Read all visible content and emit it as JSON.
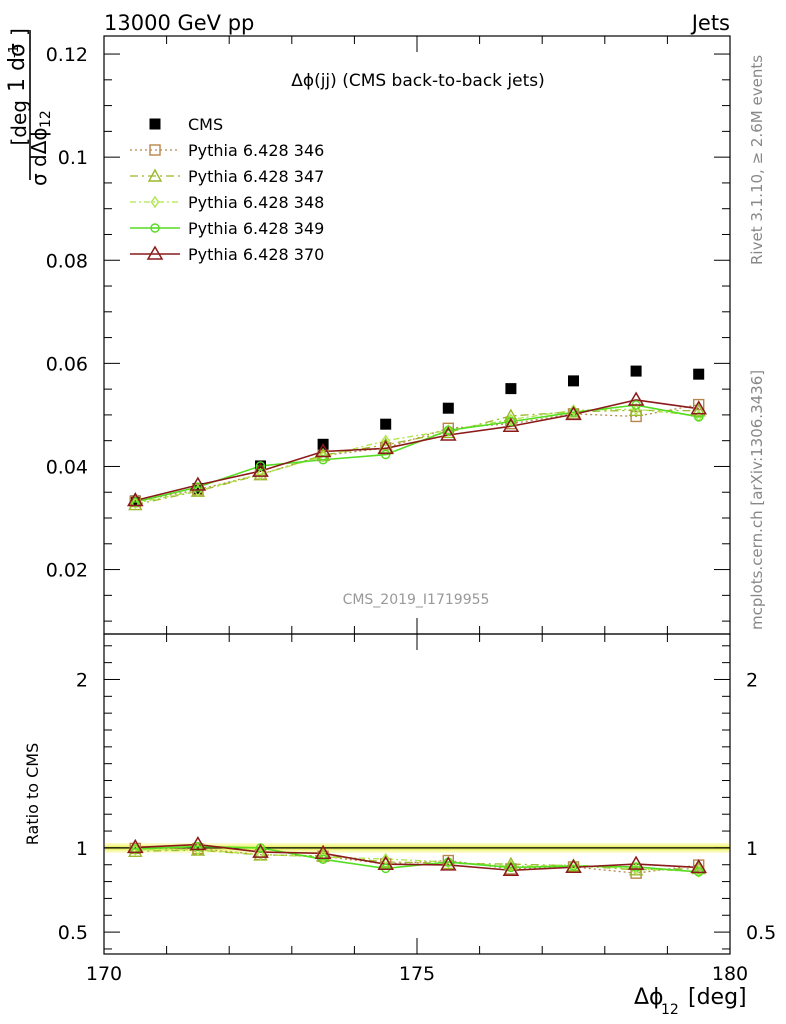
{
  "header": {
    "left": "13000 GeV pp",
    "right": "Jets"
  },
  "side_text": {
    "top": "Rivet 3.1.10, ≥ 2.6M events",
    "bottom": "mcplots.cern.ch [arXiv:1306.3436]"
  },
  "watermark": "CMS_2019_I1719955",
  "colors": {
    "data": "#000000",
    "p346": "#b8864a",
    "p347": "#9ab82a",
    "p348": "#aee64a",
    "p349": "#55dd22",
    "p370": "#8b1a1a",
    "band": "#f5f57a"
  },
  "chart_data": [
    {
      "type": "scatter",
      "title": "Δϕ(jj) (CMS back-to-back jets)",
      "ylabel": "1/σ dσ/dΔϕ₁₂ [deg⁻¹]",
      "ylim": [
        0.0075,
        0.1235
      ],
      "yticks": [
        "0.02",
        "0.04",
        "0.06",
        "0.08",
        "0.1",
        "0.12"
      ],
      "legend_position": "top-left",
      "x": [
        170.5,
        171.5,
        172.5,
        173.5,
        174.5,
        175.5,
        176.5,
        177.5,
        178.5,
        179.5
      ],
      "series": [
        {
          "name": "CMS",
          "key": "data",
          "values": [
            0.0333,
            0.0357,
            0.0401,
            0.0443,
            0.0482,
            0.0513,
            0.0551,
            0.0566,
            0.0585,
            0.0579
          ]
        },
        {
          "name": "Pythia 6.428 346",
          "key": "p346",
          "values": [
            0.0332,
            0.0355,
            0.0385,
            0.0421,
            0.0436,
            0.0474,
            0.0483,
            0.0502,
            0.0497,
            0.052
          ]
        },
        {
          "name": "Pythia 6.428 347",
          "key": "p347",
          "values": [
            0.0326,
            0.0352,
            0.0384,
            0.0422,
            0.0442,
            0.0466,
            0.0498,
            0.0506,
            0.0509,
            0.0508
          ]
        },
        {
          "name": "Pythia 6.428 348",
          "key": "p348",
          "values": [
            0.0329,
            0.0353,
            0.0385,
            0.0419,
            0.045,
            0.047,
            0.0491,
            0.0509,
            0.0511,
            0.0498
          ]
        },
        {
          "name": "Pythia 6.428 349",
          "key": "p349",
          "values": [
            0.0331,
            0.036,
            0.0401,
            0.0413,
            0.0423,
            0.047,
            0.0487,
            0.0505,
            0.0519,
            0.0496
          ]
        },
        {
          "name": "Pythia 6.428 370",
          "key": "p370",
          "values": [
            0.0334,
            0.0364,
            0.0391,
            0.0429,
            0.0435,
            0.0461,
            0.0478,
            0.0501,
            0.0529,
            0.0512
          ]
        }
      ]
    },
    {
      "type": "line",
      "ylabel": "Ratio to CMS",
      "ylim": [
        0.37,
        2.27
      ],
      "yticks": [
        "0.5",
        "1",
        "2"
      ],
      "xlabel": "Δϕ₁₂ [deg]",
      "xlim": [
        170,
        180
      ],
      "xticks": [
        "170",
        "175",
        "180"
      ],
      "x": [
        170.5,
        171.5,
        172.5,
        173.5,
        174.5,
        175.5,
        176.5,
        177.5,
        178.5,
        179.5
      ],
      "series": [
        {
          "name": "Pythia 6.428 346",
          "key": "p346",
          "values": [
            0.997,
            0.995,
            0.96,
            0.95,
            0.905,
            0.925,
            0.875,
            0.887,
            0.85,
            0.898
          ]
        },
        {
          "name": "Pythia 6.428 347",
          "key": "p347",
          "values": [
            0.98,
            0.987,
            0.958,
            0.953,
            0.917,
            0.908,
            0.904,
            0.894,
            0.87,
            0.877
          ]
        },
        {
          "name": "Pythia 6.428 348",
          "key": "p348",
          "values": [
            0.988,
            0.989,
            0.96,
            0.946,
            0.934,
            0.916,
            0.891,
            0.899,
            0.874,
            0.86
          ]
        },
        {
          "name": "Pythia 6.428 349",
          "key": "p349",
          "values": [
            0.994,
            1.008,
            1.0,
            0.932,
            0.878,
            0.916,
            0.884,
            0.892,
            0.887,
            0.857
          ]
        },
        {
          "name": "Pythia 6.428 370",
          "key": "p370",
          "values": [
            1.003,
            1.02,
            0.975,
            0.968,
            0.903,
            0.899,
            0.867,
            0.885,
            0.904,
            0.884
          ]
        }
      ]
    }
  ]
}
